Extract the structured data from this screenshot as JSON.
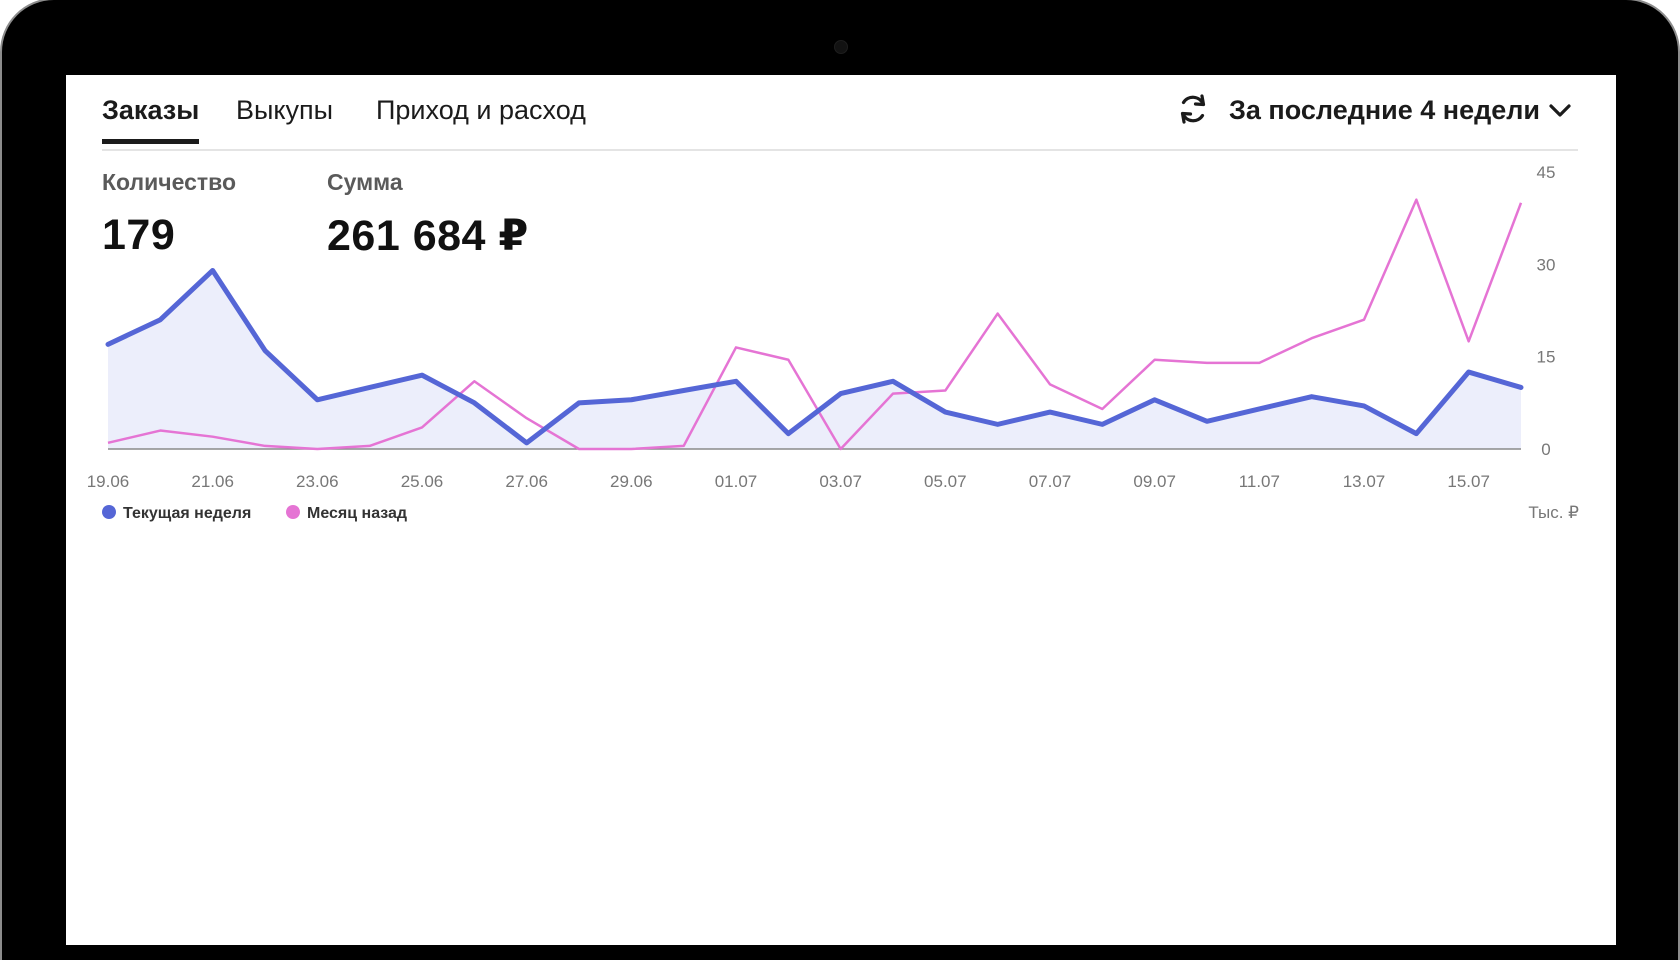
{
  "tabs": [
    {
      "label": "Заказы",
      "active": true
    },
    {
      "label": "Выкупы",
      "active": false
    },
    {
      "label": "Приход и расход",
      "active": false
    }
  ],
  "period": {
    "label": "За последние 4 недели",
    "icon": "chevron-down-icon"
  },
  "refresh_icon": "refresh-icon",
  "metrics": {
    "quantity_label": "Количество",
    "quantity_value": "179",
    "sum_label": "Сумма",
    "sum_value": "261 684 ₽"
  },
  "colors": {
    "current": "#5566d6",
    "month_ago": "#e574d4",
    "area": "#eceefb"
  },
  "chart_data": {
    "type": "area",
    "x": [
      "19.06",
      "20.06",
      "21.06",
      "22.06",
      "23.06",
      "24.06",
      "25.06",
      "26.06",
      "27.06",
      "28.06",
      "29.06",
      "30.06",
      "01.07",
      "02.07",
      "03.07",
      "04.07",
      "05.07",
      "06.07",
      "07.07",
      "08.07",
      "09.07",
      "10.07",
      "11.07",
      "12.07",
      "13.07",
      "14.07",
      "15.07",
      "16.07"
    ],
    "x_tick_labels": [
      "19.06",
      "21.06",
      "23.06",
      "25.06",
      "27.06",
      "29.06",
      "01.07",
      "03.07",
      "05.07",
      "07.07",
      "09.07",
      "11.07",
      "13.07",
      "15.07"
    ],
    "y_ticks": [
      0,
      15,
      30,
      45
    ],
    "ylim": [
      0,
      45
    ],
    "y_unit": "Тыс. ₽",
    "y_axis_side": "right",
    "series": [
      {
        "name": "Текущая неделя",
        "color": "#5566d6",
        "values": [
          17,
          21,
          29,
          16,
          8,
          10,
          12,
          7.5,
          1,
          7.5,
          8,
          9.5,
          11,
          2.5,
          9,
          11,
          6,
          4,
          6,
          4,
          8,
          4.5,
          6.5,
          8.5,
          7,
          2.5,
          12.5,
          10
        ]
      },
      {
        "name": "Месяц назад",
        "color": "#e574d4",
        "values": [
          1,
          3,
          2,
          0.5,
          0,
          0.5,
          3.5,
          11,
          5,
          0,
          0,
          0.5,
          16.5,
          14.5,
          0,
          9,
          9.5,
          22,
          10.5,
          6.5,
          14.5,
          14,
          14,
          18,
          21,
          40.5,
          17.5,
          40
        ]
      }
    ],
    "legend": "bottom-left",
    "grid": false
  }
}
